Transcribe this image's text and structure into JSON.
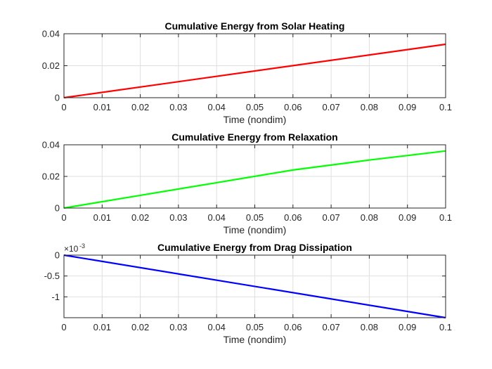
{
  "chart_data": [
    {
      "type": "line",
      "title": "Cumulative Energy from Solar Heating",
      "xlabel": "Time (nondim)",
      "ylabel": "",
      "xlim": [
        0,
        0.1
      ],
      "ylim": [
        0,
        0.04
      ],
      "x_ticks": [
        0,
        0.01,
        0.02,
        0.03,
        0.04,
        0.05,
        0.06,
        0.07,
        0.08,
        0.09,
        0.1
      ],
      "x_tick_labels": [
        "0",
        "0.01",
        "0.02",
        "0.03",
        "0.04",
        "0.05",
        "0.06",
        "0.07",
        "0.08",
        "0.09",
        "0.1"
      ],
      "y_ticks": [
        0,
        0.02,
        0.04
      ],
      "y_tick_labels": [
        "0",
        "0.02",
        "0.04"
      ],
      "grid": true,
      "series": [
        {
          "color": "#ff0000",
          "x": [
            0,
            0.1
          ],
          "y": [
            0,
            0.0334
          ]
        }
      ]
    },
    {
      "type": "line",
      "title": "Cumulative Energy from Relaxation",
      "xlabel": "Time (nondim)",
      "ylabel": "",
      "xlim": [
        0,
        0.1
      ],
      "ylim": [
        0,
        0.04
      ],
      "x_ticks": [
        0,
        0.01,
        0.02,
        0.03,
        0.04,
        0.05,
        0.06,
        0.07,
        0.08,
        0.09,
        0.1
      ],
      "x_tick_labels": [
        "0",
        "0.01",
        "0.02",
        "0.03",
        "0.04",
        "0.05",
        "0.06",
        "0.07",
        "0.08",
        "0.09",
        "0.1"
      ],
      "y_ticks": [
        0,
        0.02,
        0.04
      ],
      "y_tick_labels": [
        "0",
        "0.02",
        "0.04"
      ],
      "grid": true,
      "series": [
        {
          "color": "#00ff00",
          "x": [
            0,
            0.02,
            0.04,
            0.06,
            0.08,
            0.1
          ],
          "y": [
            0,
            0.00802,
            0.01604,
            0.02406,
            0.03035,
            0.0361
          ]
        }
      ]
    },
    {
      "type": "line",
      "title": "Cumulative Energy from Drag Dissipation",
      "xlabel": "Time (nondim)",
      "ylabel": "",
      "xlim": [
        0,
        0.1
      ],
      "ylim": [
        -1.5,
        0
      ],
      "y_exponent_base": "×10",
      "y_exponent_power": "-3",
      "x_ticks": [
        0,
        0.01,
        0.02,
        0.03,
        0.04,
        0.05,
        0.06,
        0.07,
        0.08,
        0.09,
        0.1
      ],
      "x_tick_labels": [
        "0",
        "0.01",
        "0.02",
        "0.03",
        "0.04",
        "0.05",
        "0.06",
        "0.07",
        "0.08",
        "0.09",
        "0.1"
      ],
      "y_ticks": [
        -1,
        -0.5,
        0
      ],
      "y_tick_labels": [
        "-1",
        "-0.5",
        "0"
      ],
      "grid": true,
      "series": [
        {
          "color": "#0000ff",
          "x": [
            0,
            0.1
          ],
          "y": [
            0,
            -1.5
          ]
        }
      ]
    }
  ]
}
